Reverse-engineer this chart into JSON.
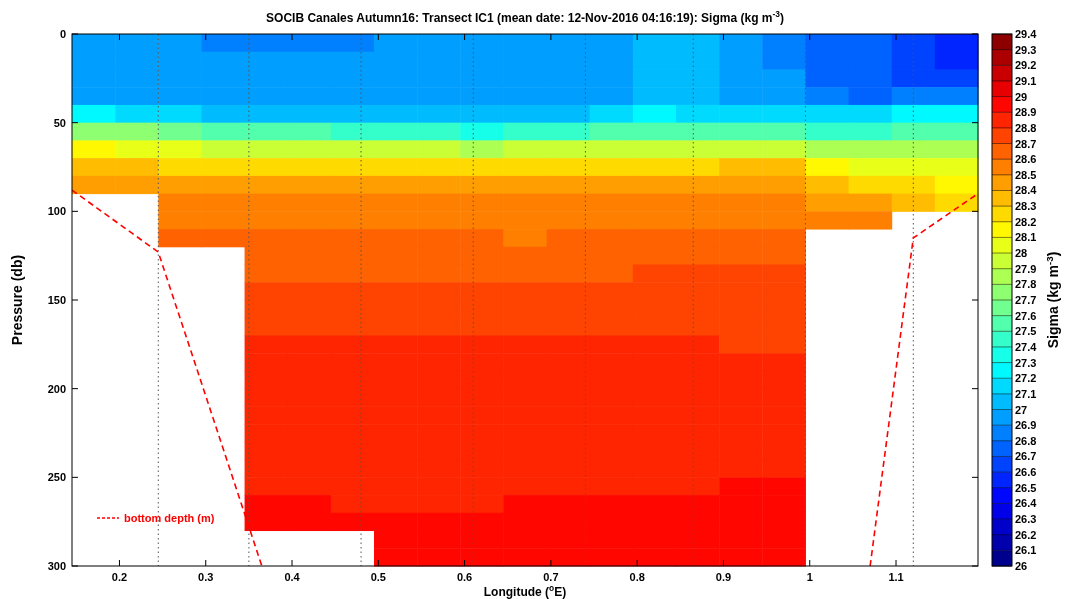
{
  "chart_data": {
    "type": "heatmap",
    "title": "SOCIB Canales Autumn16: Transect IC1 (mean date: 12-Nov-2016 04:16:19): Sigma (kg m$^{-3}$)",
    "xlabel": "Longitude ($^{o}$E)",
    "ylabel": "Pressure (db)",
    "clabel": "Sigma (kg m$^{-3}$)",
    "x": [
      0.17,
      0.22,
      0.27,
      0.32,
      0.37,
      0.42,
      0.47,
      0.52,
      0.57,
      0.62,
      0.67,
      0.72,
      0.77,
      0.82,
      0.87,
      0.92,
      0.97,
      1.02,
      1.07,
      1.12,
      1.17
    ],
    "y": [
      5,
      15,
      25,
      35,
      45,
      55,
      65,
      75,
      85,
      95,
      105,
      115,
      125,
      135,
      145,
      155,
      165,
      175,
      185,
      195,
      205,
      215,
      225,
      235,
      245,
      255,
      265,
      275,
      285,
      295
    ],
    "cells": [
      [
        26.95,
        26.95,
        26.95,
        26.8,
        26.8,
        26.8,
        26.8,
        26.95,
        26.95,
        26.95,
        26.95,
        26.95,
        26.95,
        27.05,
        27.05,
        26.9,
        26.85,
        26.75,
        26.7,
        26.6,
        26.55
      ],
      [
        26.95,
        26.95,
        26.95,
        26.95,
        26.95,
        26.95,
        26.95,
        26.95,
        26.95,
        26.95,
        26.95,
        26.95,
        26.95,
        27.05,
        27.05,
        26.9,
        26.85,
        26.75,
        26.7,
        26.6,
        26.55
      ],
      [
        26.95,
        26.95,
        26.95,
        26.95,
        26.95,
        26.95,
        26.95,
        26.95,
        26.95,
        26.95,
        26.95,
        26.95,
        26.95,
        27.05,
        27.05,
        26.9,
        26.9,
        26.75,
        26.7,
        26.6,
        26.6
      ],
      [
        26.95,
        26.95,
        26.95,
        26.95,
        26.95,
        26.95,
        26.95,
        26.95,
        26.95,
        26.95,
        26.95,
        26.95,
        26.95,
        27.05,
        27.05,
        26.9,
        26.9,
        26.8,
        26.75,
        26.8,
        26.8
      ],
      [
        27.2,
        27.15,
        27.1,
        27.05,
        27.0,
        27.0,
        27.0,
        27.0,
        27.0,
        27.0,
        27.05,
        27.05,
        27.1,
        27.2,
        27.15,
        27.1,
        27.1,
        27.1,
        27.1,
        27.2,
        27.2
      ],
      [
        27.75,
        27.7,
        27.6,
        27.55,
        27.5,
        27.5,
        27.45,
        27.4,
        27.4,
        27.35,
        27.4,
        27.45,
        27.5,
        27.5,
        27.5,
        27.5,
        27.5,
        27.4,
        27.4,
        27.5,
        27.55
      ],
      [
        28.1,
        28.05,
        28.0,
        27.95,
        27.95,
        27.95,
        27.9,
        27.9,
        27.9,
        27.85,
        27.9,
        27.9,
        27.95,
        27.95,
        27.95,
        27.95,
        27.95,
        27.8,
        27.8,
        27.8,
        27.85
      ],
      [
        28.3,
        28.3,
        28.25,
        28.25,
        28.2,
        28.2,
        28.2,
        28.2,
        28.2,
        28.2,
        28.2,
        28.2,
        28.25,
        28.25,
        28.25,
        28.3,
        28.3,
        28.1,
        28.05,
        28.0,
        28.0
      ],
      [
        28.45,
        28.45,
        28.4,
        28.4,
        28.4,
        28.4,
        28.4,
        28.4,
        28.4,
        28.4,
        28.4,
        28.4,
        28.4,
        28.4,
        28.4,
        28.45,
        28.45,
        28.3,
        28.25,
        28.2,
        28.15
      ],
      [
        null,
        null,
        28.5,
        28.5,
        28.5,
        28.5,
        28.5,
        28.5,
        28.5,
        28.5,
        28.5,
        28.5,
        28.5,
        28.5,
        28.5,
        28.5,
        28.5,
        28.45,
        28.4,
        28.3,
        28.25
      ],
      [
        null,
        null,
        28.55,
        28.55,
        28.55,
        28.55,
        28.55,
        28.55,
        28.55,
        28.55,
        28.55,
        28.55,
        28.55,
        28.55,
        28.55,
        28.55,
        28.55,
        28.55,
        28.5,
        null,
        null
      ],
      [
        null,
        null,
        28.6,
        28.6,
        28.6,
        28.6,
        28.6,
        28.6,
        28.6,
        28.6,
        28.55,
        28.6,
        28.6,
        28.6,
        28.6,
        28.6,
        28.6,
        null,
        null,
        null,
        null
      ],
      [
        null,
        null,
        null,
        null,
        28.65,
        28.65,
        28.65,
        28.65,
        28.65,
        28.65,
        28.65,
        28.65,
        28.65,
        28.65,
        28.65,
        28.65,
        28.65,
        null,
        null,
        null,
        null
      ],
      [
        null,
        null,
        null,
        null,
        28.65,
        28.65,
        28.65,
        28.65,
        28.65,
        28.65,
        28.65,
        28.65,
        28.65,
        28.75,
        28.75,
        28.75,
        28.75,
        null,
        null,
        null,
        null
      ],
      [
        null,
        null,
        null,
        null,
        28.7,
        28.7,
        28.7,
        28.7,
        28.7,
        28.7,
        28.7,
        28.75,
        28.75,
        28.75,
        28.75,
        28.75,
        28.75,
        null,
        null,
        null,
        null
      ],
      [
        null,
        null,
        null,
        null,
        28.75,
        28.75,
        28.75,
        28.75,
        28.75,
        28.75,
        28.75,
        28.75,
        28.75,
        28.75,
        28.75,
        28.75,
        28.75,
        null,
        null,
        null,
        null
      ],
      [
        null,
        null,
        null,
        null,
        28.75,
        28.75,
        28.75,
        28.75,
        28.75,
        28.75,
        28.75,
        28.75,
        28.75,
        28.75,
        28.75,
        28.75,
        28.75,
        null,
        null,
        null,
        null
      ],
      [
        null,
        null,
        null,
        null,
        28.8,
        28.8,
        28.8,
        28.8,
        28.8,
        28.8,
        28.8,
        28.8,
        28.8,
        28.85,
        28.8,
        28.75,
        28.75,
        null,
        null,
        null,
        null
      ],
      [
        null,
        null,
        null,
        null,
        28.85,
        28.85,
        28.8,
        28.8,
        28.8,
        28.8,
        28.8,
        28.85,
        28.85,
        28.85,
        28.85,
        28.8,
        28.8,
        null,
        null,
        null,
        null
      ],
      [
        null,
        null,
        null,
        null,
        28.85,
        28.85,
        28.85,
        28.85,
        28.85,
        28.8,
        28.85,
        28.85,
        28.85,
        28.85,
        28.85,
        28.85,
        28.85,
        null,
        null,
        null,
        null
      ],
      [
        null,
        null,
        null,
        null,
        28.85,
        28.85,
        28.85,
        28.85,
        28.85,
        28.85,
        28.85,
        28.85,
        28.85,
        28.85,
        28.85,
        28.85,
        28.85,
        null,
        null,
        null,
        null
      ],
      [
        null,
        null,
        null,
        null,
        28.85,
        28.85,
        28.85,
        28.85,
        28.85,
        28.85,
        28.85,
        28.85,
        28.85,
        28.85,
        28.85,
        28.85,
        28.85,
        null,
        null,
        null,
        null
      ],
      [
        null,
        null,
        null,
        null,
        28.85,
        28.85,
        28.85,
        28.85,
        28.85,
        28.85,
        28.85,
        28.85,
        28.85,
        28.85,
        28.85,
        28.85,
        28.85,
        null,
        null,
        null,
        null
      ],
      [
        null,
        null,
        null,
        null,
        28.85,
        28.85,
        28.85,
        28.85,
        28.85,
        28.85,
        28.85,
        28.85,
        28.85,
        28.85,
        28.85,
        28.85,
        28.85,
        null,
        null,
        null,
        null
      ],
      [
        null,
        null,
        null,
        null,
        28.85,
        28.85,
        28.85,
        28.85,
        28.85,
        28.85,
        28.85,
        28.85,
        28.85,
        28.85,
        28.85,
        28.85,
        28.85,
        null,
        null,
        null,
        null
      ],
      [
        null,
        null,
        null,
        null,
        28.85,
        28.85,
        28.85,
        28.85,
        28.85,
        28.85,
        28.85,
        28.85,
        28.85,
        28.85,
        28.85,
        28.95,
        28.95,
        null,
        null,
        null,
        null
      ],
      [
        null,
        null,
        null,
        null,
        28.95,
        28.95,
        28.85,
        28.85,
        28.85,
        28.85,
        28.9,
        28.95,
        28.95,
        28.95,
        28.95,
        28.95,
        28.95,
        null,
        null,
        null,
        null
      ],
      [
        null,
        null,
        null,
        null,
        28.95,
        28.95,
        28.9,
        28.95,
        28.95,
        28.9,
        28.95,
        28.95,
        28.95,
        28.95,
        28.95,
        28.95,
        28.95,
        null,
        null,
        null,
        null
      ],
      [
        null,
        null,
        null,
        null,
        null,
        null,
        null,
        28.95,
        28.95,
        28.95,
        28.95,
        28.95,
        28.95,
        28.95,
        28.95,
        28.95,
        28.95,
        null,
        null,
        null,
        null
      ],
      [
        null,
        null,
        null,
        null,
        null,
        null,
        null,
        28.95,
        28.95,
        28.95,
        28.95,
        28.95,
        28.95,
        28.95,
        28.95,
        28.95,
        28.95,
        null,
        null,
        null,
        null
      ]
    ],
    "clim": [
      26,
      29.4
    ],
    "cticks": [
      26,
      26.1,
      26.2,
      26.3,
      26.4,
      26.5,
      26.6,
      26.7,
      26.8,
      26.9,
      27,
      27.1,
      27.2,
      27.3,
      27.4,
      27.5,
      27.6,
      27.7,
      27.8,
      27.9,
      28,
      28.1,
      28.2,
      28.3,
      28.4,
      28.5,
      28.6,
      28.7,
      28.8,
      28.9,
      29,
      29.1,
      29.2,
      29.3,
      29.4
    ],
    "xlim": [
      0.145,
      1.195
    ],
    "xticks": [
      0.2,
      0.3,
      0.4,
      0.5,
      0.6,
      0.7,
      0.8,
      0.9,
      1,
      1.1
    ],
    "ylim": [
      300,
      0
    ],
    "yticks": [
      0,
      50,
      100,
      150,
      200,
      250,
      300
    ],
    "series": [
      {
        "type": "line",
        "name": "bottom depth (m)",
        "color": "#ff0000",
        "line_style": "dashed",
        "x": [
          0.145,
          0.245,
          0.365
        ],
        "values": [
          88,
          123,
          300
        ]
      },
      {
        "type": "line",
        "color": "#ff0000",
        "line_style": "dashed",
        "x": [
          1.07,
          1.12,
          1.195
        ],
        "values": [
          300,
          115,
          90
        ]
      }
    ],
    "ref_lines": [
      {
        "axis": "x",
        "value": 0.245,
        "color": "#555555",
        "line_style": "dotted"
      },
      {
        "axis": "x",
        "value": 0.35,
        "color": "#555555",
        "line_style": "dotted"
      },
      {
        "axis": "x",
        "value": 0.48,
        "color": "#555555",
        "line_style": "dotted"
      },
      {
        "axis": "x",
        "value": 0.61,
        "color": "#555555",
        "line_style": "dotted"
      },
      {
        "axis": "x",
        "value": 0.74,
        "color": "#555555",
        "line_style": "dotted"
      },
      {
        "axis": "x",
        "value": 0.865,
        "color": "#555555",
        "line_style": "dotted"
      },
      {
        "axis": "x",
        "value": 0.995,
        "color": "#555555",
        "line_style": "dotted"
      },
      {
        "axis": "x",
        "value": 1.12,
        "color": "#555555",
        "line_style": "dotted"
      }
    ],
    "legend": "bottom left"
  }
}
